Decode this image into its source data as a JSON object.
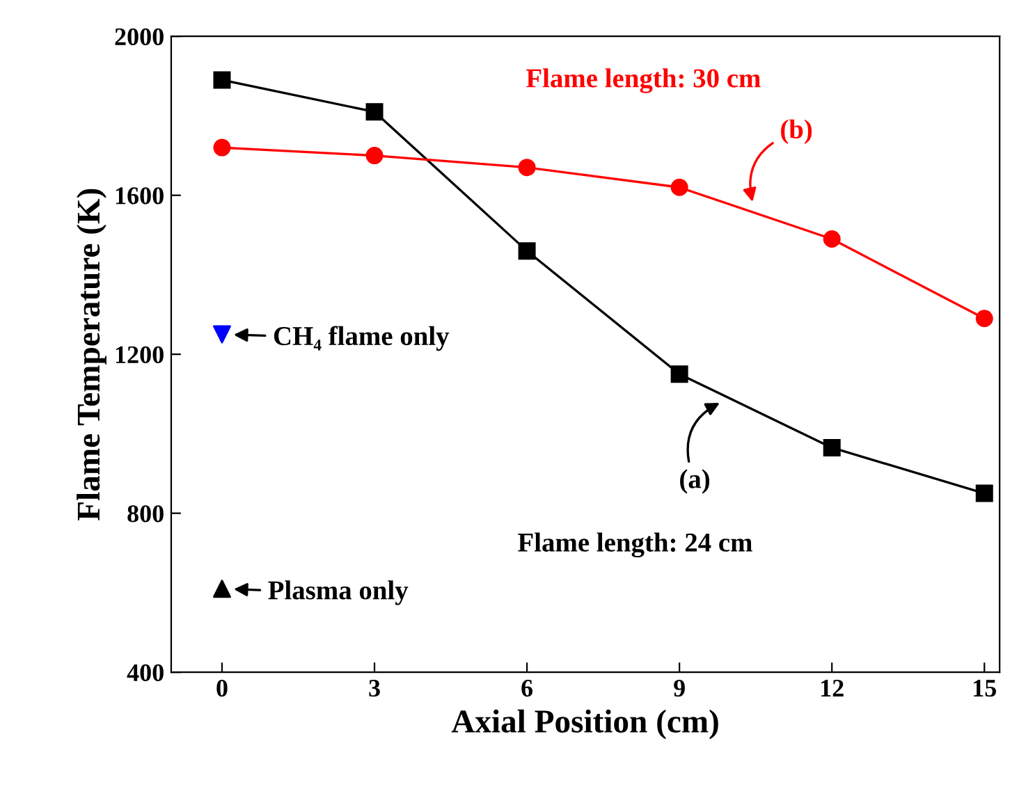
{
  "chart_data": {
    "type": "line",
    "xlabel": "Axial Position (cm)",
    "ylabel": "Flame Temperature (K)",
    "xlim": [
      -1,
      15.3
    ],
    "ylim": [
      400,
      2000
    ],
    "xticks": [
      0,
      3,
      6,
      9,
      12,
      15
    ],
    "yticks": [
      400,
      800,
      1200,
      1600,
      2000
    ],
    "grid": false,
    "legend": false,
    "series": [
      {
        "name": "Flame length: 24 cm",
        "color": "#000000",
        "marker": "square",
        "x": [
          0,
          3,
          6,
          9,
          12,
          15
        ],
        "values": [
          1890,
          1810,
          1460,
          1150,
          965,
          850
        ]
      },
      {
        "name": "Flame length: 30 cm",
        "color": "#ff0000",
        "marker": "circle",
        "x": [
          0,
          3,
          6,
          9,
          12,
          15
        ],
        "values": [
          1720,
          1700,
          1670,
          1620,
          1490,
          1290
        ]
      },
      {
        "type": "scatter",
        "color": "#0000ff",
        "marker": "triangle_down",
        "x": [
          0
        ],
        "values": [
          1250
        ]
      },
      {
        "type": "scatter",
        "color": "#000000",
        "marker": "triangle",
        "x": [
          0
        ],
        "values": [
          610
        ]
      }
    ],
    "annotations": [
      {
        "text": "(a)",
        "x": 10.0,
        "y": 1090
      },
      {
        "text": "(b)",
        "x": 10.5,
        "y": 1555
      },
      {
        "text": "CH₄ flame only",
        "x": 0,
        "y": 1250
      },
      {
        "text": "Plasma only",
        "x": 0,
        "y": 610
      }
    ]
  }
}
